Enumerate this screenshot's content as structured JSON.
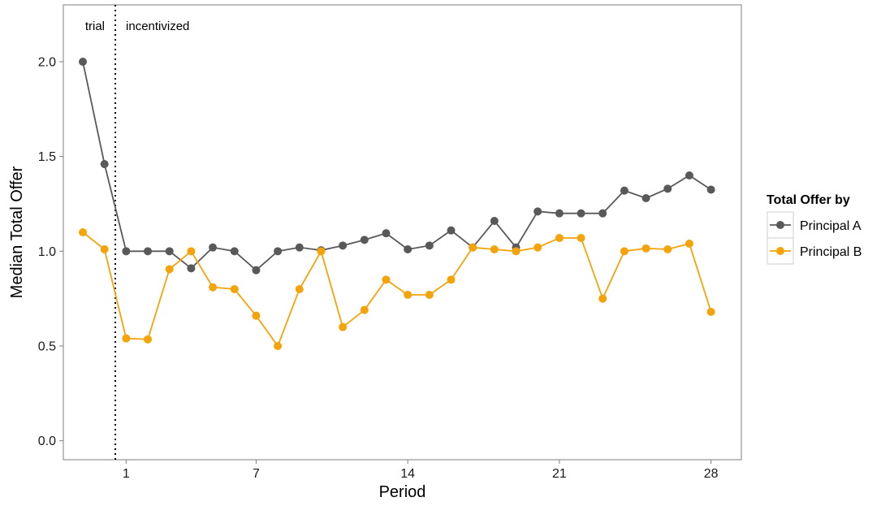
{
  "chart_data": {
    "type": "line",
    "title": "",
    "xlabel": "Period",
    "ylabel": "Median Total Offer",
    "x_ticks": [
      1,
      7,
      14,
      21,
      28
    ],
    "y_ticks": [
      "0.0",
      "0.5",
      "1.0",
      "1.5",
      "2.0"
    ],
    "xlim": [
      -1.9,
      29.4
    ],
    "ylim": [
      -0.1,
      2.3
    ],
    "grid": false,
    "legend": {
      "title": "Total Offer by",
      "placement": "right"
    },
    "annotations": {
      "divider_x": 0.5,
      "left_label": "trial",
      "right_label": "incentivized"
    },
    "x": [
      -1,
      0,
      1,
      2,
      3,
      4,
      5,
      6,
      7,
      8,
      9,
      10,
      11,
      12,
      13,
      14,
      15,
      16,
      17,
      18,
      19,
      20,
      21,
      22,
      23,
      24,
      25,
      26,
      27,
      28
    ],
    "series": [
      {
        "name": "Principal A",
        "color": "#595959",
        "values": [
          2.0,
          1.46,
          1.0,
          1.0,
          1.0,
          0.91,
          1.02,
          1.0,
          0.9,
          1.0,
          1.02,
          1.005,
          1.03,
          1.06,
          1.095,
          1.01,
          1.03,
          1.11,
          1.02,
          1.16,
          1.02,
          1.21,
          1.2,
          1.2,
          1.2,
          1.32,
          1.28,
          1.33,
          1.4,
          1.325
        ]
      },
      {
        "name": "Principal B",
        "color": "#F5A30A",
        "values": [
          1.1,
          1.01,
          0.54,
          0.535,
          0.905,
          1.0,
          0.81,
          0.8,
          0.66,
          0.5,
          0.8,
          1.0,
          0.6,
          0.69,
          0.85,
          0.77,
          0.77,
          0.85,
          1.02,
          1.01,
          1.0,
          1.02,
          1.07,
          1.07,
          0.75,
          1.0,
          1.015,
          1.01,
          1.04,
          0.68
        ]
      }
    ]
  }
}
